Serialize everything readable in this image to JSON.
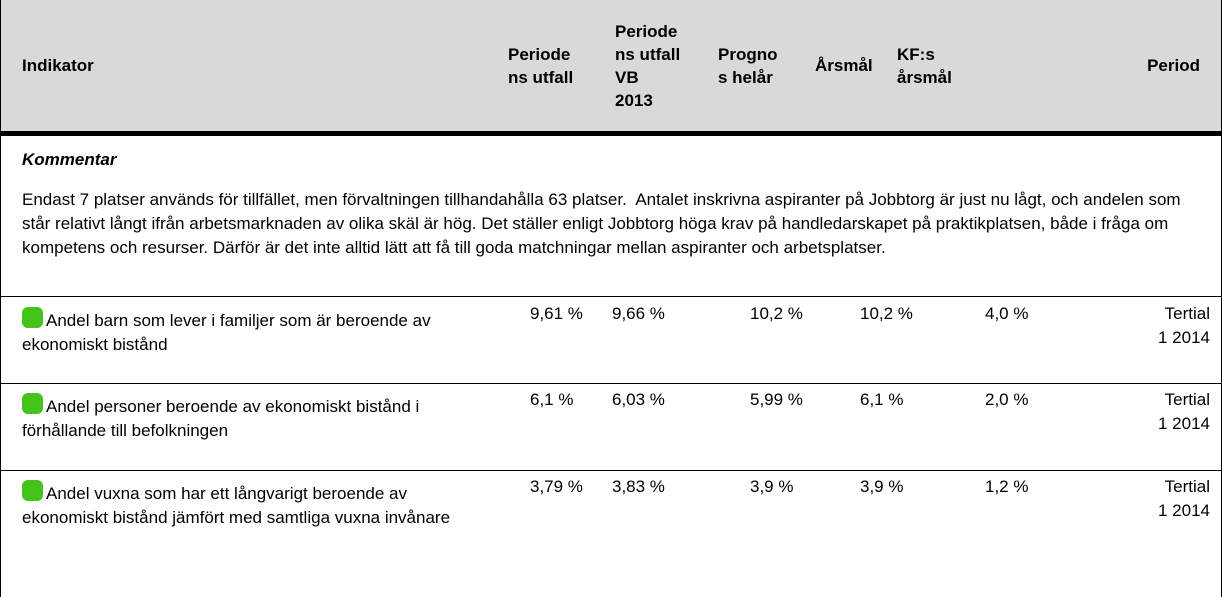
{
  "header": {
    "columns": [
      [
        "Indikator"
      ],
      [
        "Periode",
        "ns utfall"
      ],
      [
        "Periode",
        "ns utfall",
        "VB",
        "2013"
      ],
      [
        "Progno",
        "s helår"
      ],
      [
        "Årsmål"
      ],
      [
        "KF:s",
        "årsmål"
      ],
      [
        "Period"
      ]
    ]
  },
  "comment": {
    "title": "Kommentar",
    "text": "Endast 7 platser används för tillfället, men förvaltningen tillhandahålla 63 platser.  Antalet inskrivna aspiranter på Jobbtorg är just nu lågt, och andelen som står relativt långt ifrån arbetsmarknaden av olika skäl är hög. Det ställer enligt Jobbtorg höga krav på handledarskapet på praktikplatsen, både i fråga om kompetens och resurser. Därför är det inte alltid lätt att få till goda matchningar mellan aspiranter och arbetsplatser."
  },
  "table": {
    "rows": [
      [
        "Andel barn som lever i familjer som är beroende av ekonomiskt bistånd",
        "9,61 %",
        "9,66 %",
        "10,2 %",
        "10,2 %",
        "4,0 %",
        [
          "Tertial",
          "1 2014"
        ]
      ],
      [
        "Andel personer beroende av ekonomiskt bistånd i förhållande till befolkningen",
        "6,1 %",
        "6,03 %",
        "5,99 %",
        "6,1 %",
        "2,0 %",
        [
          "Tertial",
          "1 2014"
        ]
      ],
      [
        "Andel vuxna som har ett långvarigt beroende av ekonomiskt bistånd jämfört med samtliga vuxna invånare",
        "3,79 %",
        "3,83 %",
        "3,9 %",
        "3,9 %",
        "1,2 %",
        [
          "Tertial",
          "1 2014"
        ]
      ]
    ]
  }
}
